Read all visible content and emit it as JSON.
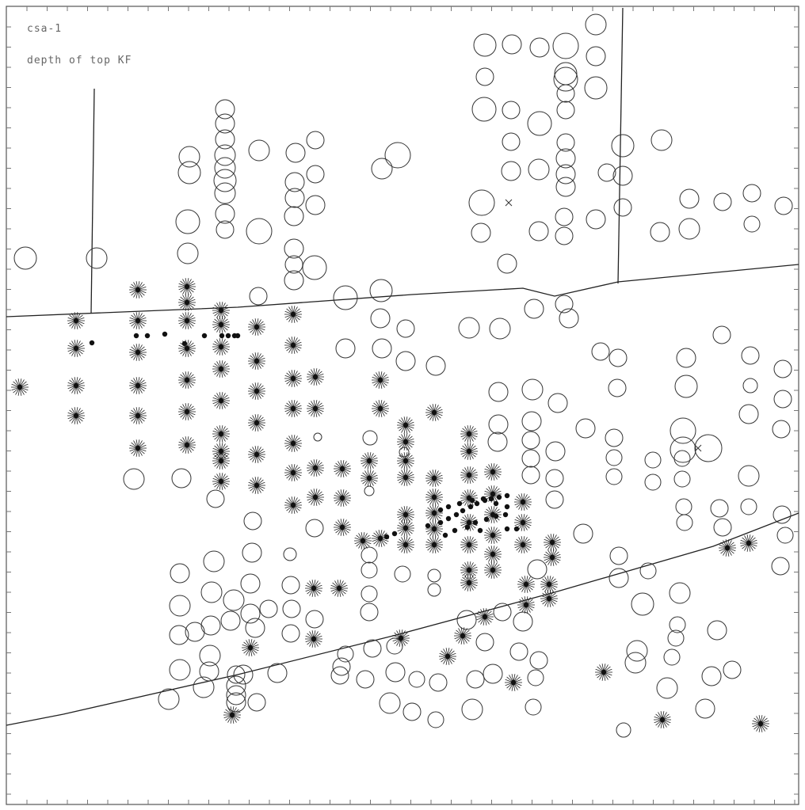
{
  "map": {
    "title": "csa-1",
    "subtitle": "depth of top KF"
  },
  "colors": {
    "ink": "#222222",
    "background": "#ffffff"
  }
}
